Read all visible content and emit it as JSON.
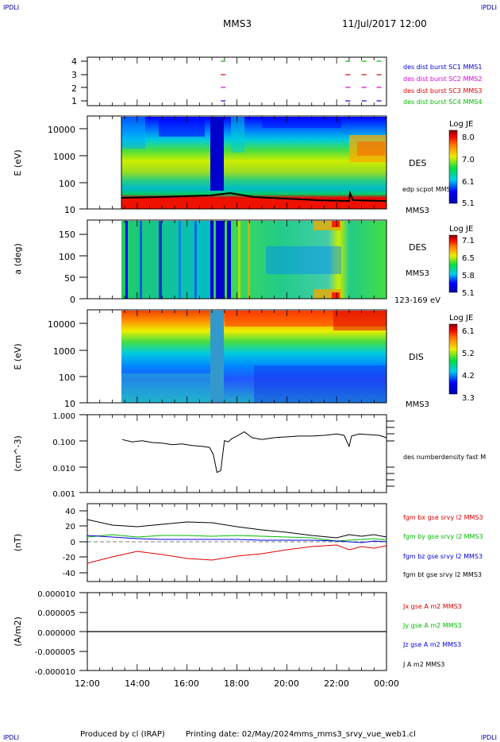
{
  "corner_labels": {
    "top_left": "IPDLI",
    "top_right": "IPDLI",
    "bottom_left": "IPDLI",
    "bottom_right": "IPDLI"
  },
  "header": {
    "spacecraft": "MMS3",
    "date": "11/Jul/2017 12:00"
  },
  "footer": {
    "produced_by": "Produced by cl (IRAP)",
    "printing_date": "Printing date: 02/May/2024",
    "plot_file": "mms_mms3_srvy_vue_web1.cl"
  },
  "x_ticks": [
    "12:00",
    "14:00",
    "16:00",
    "18:00",
    "20:00",
    "22:00",
    "00:00"
  ],
  "colors": {
    "red": "#dd0000",
    "green": "#00bb00",
    "blue": "#0000dd",
    "magenta": "#dd00dd",
    "black": "#000000"
  },
  "chart_data": [
    {
      "type": "scatter",
      "name": "availability",
      "yticks": [
        "1",
        "2",
        "3",
        "4"
      ],
      "legend": [
        {
          "label": "des dist burst SC1 MMS1",
          "color": "#0000dd"
        },
        {
          "label": "des dist burst SC2 MMS2",
          "color": "#dd00dd"
        },
        {
          "label": "des dist burst SC3 MMS3",
          "color": "#dd0000"
        },
        {
          "label": "des dist burst SC4 MMS4",
          "color": "#00bb00"
        }
      ],
      "intervals_hours": [
        17.45,
        22.45,
        23.1,
        23.7
      ]
    },
    {
      "type": "heatmap",
      "name": "des-energy",
      "ylabel": "E (eV)",
      "yticks": [
        "10",
        "100",
        "1000",
        "10000"
      ],
      "ylim": [
        10,
        30000
      ],
      "label": "DES",
      "sublabel": "MMS3",
      "overlay_label": "edp scpot MMS3",
      "colorbar": {
        "title": "Log JE",
        "ticks": [
          "8.0",
          "7.0",
          "6.1",
          "5.1"
        ]
      }
    },
    {
      "type": "heatmap",
      "name": "des-pitch",
      "ylabel": "a (deg)",
      "yticks": [
        "0",
        "50",
        "100",
        "150"
      ],
      "ylim": [
        0,
        180
      ],
      "label": "DES",
      "sublabel": "MMS3",
      "energy_range": "123-169 eV",
      "colorbar": {
        "title": "Log JE",
        "ticks": [
          "7.1",
          "6.5",
          "5.8",
          "5.1"
        ]
      }
    },
    {
      "type": "heatmap",
      "name": "dis-energy",
      "ylabel": "E (eV)",
      "yticks": [
        "10",
        "100",
        "1000",
        "10000"
      ],
      "ylim": [
        10,
        30000
      ],
      "label": "DIS",
      "sublabel": "MMS3",
      "colorbar": {
        "title": "Log JE",
        "ticks": [
          "6.1",
          "5.2",
          "4.2",
          "3.3"
        ]
      }
    },
    {
      "type": "line",
      "name": "density",
      "ylabel": "(cm^-3)",
      "yticks": [
        "0.001",
        "0.010",
        "0.100",
        "1.000"
      ],
      "ylim": [
        0.001,
        1.0
      ],
      "legend": [
        {
          "label": "des numberdensity fast M",
          "color": "#000000"
        }
      ],
      "x_hours": [
        13.4,
        13.8,
        14.2,
        14.6,
        15.0,
        15.4,
        15.8,
        16.2,
        16.6,
        16.9,
        17.05,
        17.2,
        17.35,
        17.5,
        17.65,
        17.8,
        18.0,
        18.3,
        18.6,
        19.0,
        19.5,
        20.0,
        20.5,
        21.0,
        21.5,
        22.0,
        22.3,
        22.5,
        22.6,
        22.9,
        23.3,
        23.7,
        24.0
      ],
      "y_values": [
        0.11,
        0.09,
        0.1,
        0.085,
        0.08,
        0.07,
        0.075,
        0.065,
        0.06,
        0.055,
        0.03,
        0.006,
        0.007,
        0.1,
        0.09,
        0.12,
        0.15,
        0.22,
        0.13,
        0.11,
        0.13,
        0.14,
        0.15,
        0.15,
        0.16,
        0.18,
        0.16,
        0.06,
        0.15,
        0.18,
        0.17,
        0.16,
        0.13
      ]
    },
    {
      "type": "line",
      "name": "magnetic-field",
      "ylabel": "(nT)",
      "yticks": [
        "-40",
        "-20",
        "0",
        "20",
        "40"
      ],
      "ylim": [
        -48,
        48
      ],
      "x_hours": [
        12.0,
        13.0,
        14.0,
        15.0,
        16.0,
        17.0,
        18.0,
        19.0,
        20.0,
        21.0,
        22.0,
        22.5,
        23.0,
        23.5,
        24.0
      ],
      "series": [
        {
          "name": "fgm bx gse srvy l2 MMS3",
          "color": "#dd0000",
          "values": [
            -27,
            -19,
            -12,
            -16,
            -21,
            -23,
            -18,
            -15,
            -10,
            -6,
            -4,
            -10,
            -6,
            -8,
            -5
          ]
        },
        {
          "name": "fgm by gse srvy l2 MMS3",
          "color": "#00bb00",
          "values": [
            6,
            9,
            6,
            8,
            8,
            7,
            8,
            7,
            6,
            5,
            1,
            2,
            3,
            4,
            2
          ]
        },
        {
          "name": "fgm bz gse srvy l2 MMS3",
          "color": "#0000dd",
          "values": [
            8,
            6,
            4,
            3,
            3,
            3,
            3,
            2,
            2,
            2,
            1,
            0,
            -1,
            1,
            0
          ]
        },
        {
          "name": "fgm bt gse srvy l2 MMS3",
          "color": "#000000",
          "values": [
            28,
            21,
            19,
            22,
            25,
            24,
            19,
            15,
            12,
            8,
            5,
            9,
            7,
            9,
            6
          ]
        }
      ]
    },
    {
      "type": "line",
      "name": "current-density",
      "ylabel": "(A/m2)",
      "yticks": [
        "-0.000010",
        "-0.000005",
        "0.000000",
        "0.000005",
        "0.000010"
      ],
      "ylim": [
        -1e-05,
        1e-05
      ],
      "series": [
        {
          "name": "Jx gse A m2 MMS3",
          "color": "#dd0000",
          "values": [
            0,
            0
          ]
        },
        {
          "name": "Jy gse A m2 MMS3",
          "color": "#00bb00",
          "values": [
            0,
            0
          ]
        },
        {
          "name": "Jz gse A m2 MMS3",
          "color": "#0000dd",
          "values": [
            0,
            0
          ]
        },
        {
          "name": "J A m2 MMS3",
          "color": "#000000",
          "values": [
            0,
            0
          ]
        }
      ]
    }
  ]
}
